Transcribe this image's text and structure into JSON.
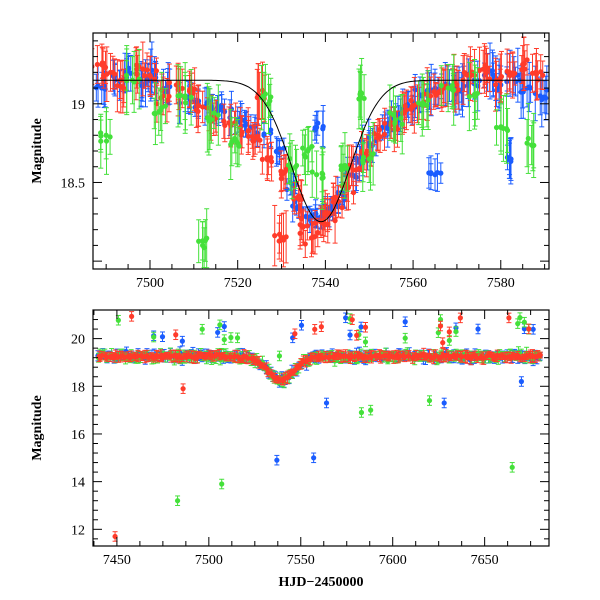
{
  "chart_data": [
    {
      "type": "scatter",
      "panel": "top",
      "xlabel": "",
      "ylabel": "Magnitude",
      "xlim": [
        7487,
        7591
      ],
      "ylim": [
        19.45,
        17.95
      ],
      "y_inverted": true,
      "x_ticks": [
        7500,
        7520,
        7540,
        7560,
        7580
      ],
      "y_ticks": [
        18.5,
        19
      ],
      "y_tick_labels": [
        "18.5",
        "19"
      ],
      "x_tick_labels": [
        "7500",
        "7520",
        "7540",
        "7560",
        "7580"
      ],
      "colors": {
        "red": "#ff3b2a",
        "green": "#44e03a",
        "blue": "#1a5cff"
      },
      "series": [
        {
          "color": "blue",
          "points": [
            [
              7489,
              19.1,
              0.1
            ],
            [
              7492,
              19.15,
              0.1
            ],
            [
              7495,
              19.2,
              0.12
            ],
            [
              7498,
              19.12,
              0.1
            ],
            [
              7501,
              19.18,
              0.12
            ],
            [
              7504,
              19.1,
              0.1
            ],
            [
              7508,
              19.05,
              0.1
            ],
            [
              7511,
              19.0,
              0.08
            ],
            [
              7514,
              18.98,
              0.08
            ],
            [
              7517,
              18.95,
              0.08
            ],
            [
              7520,
              18.9,
              0.08
            ],
            [
              7523,
              18.85,
              0.08
            ],
            [
              7526,
              18.8,
              0.08
            ],
            [
              7529,
              18.7,
              0.08
            ],
            [
              7532,
              18.5,
              0.08
            ],
            [
              7534,
              18.35,
              0.07
            ],
            [
              7536,
              18.28,
              0.06
            ],
            [
              7538,
              18.27,
              0.06
            ],
            [
              7540,
              18.3,
              0.06
            ],
            [
              7542,
              18.35,
              0.06
            ],
            [
              7544,
              18.42,
              0.07
            ],
            [
              7546,
              18.55,
              0.07
            ],
            [
              7548,
              18.65,
              0.08
            ],
            [
              7550,
              18.75,
              0.08
            ],
            [
              7553,
              18.85,
              0.08
            ],
            [
              7556,
              18.92,
              0.08
            ],
            [
              7559,
              18.98,
              0.1
            ],
            [
              7562,
              19.05,
              0.1
            ],
            [
              7565,
              19.1,
              0.12
            ],
            [
              7568,
              19.12,
              0.12
            ],
            [
              7571,
              19.08,
              0.12
            ],
            [
              7574,
              19.15,
              0.12
            ],
            [
              7577,
              19.2,
              0.12
            ],
            [
              7580,
              19.12,
              0.12
            ],
            [
              7583,
              19.18,
              0.12
            ],
            [
              7586,
              19.1,
              0.12
            ],
            [
              7589,
              19.05,
              0.12
            ],
            [
              7538,
              18.85,
              0.1
            ],
            [
              7565,
              18.55,
              0.1
            ],
            [
              7582,
              18.65,
              0.1
            ],
            [
              7500,
              19.15,
              0.1
            ]
          ]
        },
        {
          "color": "red",
          "points": [
            [
              7488,
              19.25,
              0.12
            ],
            [
              7491,
              19.2,
              0.12
            ],
            [
              7494,
              19.1,
              0.12
            ],
            [
              7497,
              19.22,
              0.12
            ],
            [
              7500,
              19.18,
              0.12
            ],
            [
              7503,
              19.05,
              0.12
            ],
            [
              7506,
              19.12,
              0.12
            ],
            [
              7509,
              19.08,
              0.1
            ],
            [
              7512,
              18.98,
              0.1
            ],
            [
              7515,
              18.92,
              0.1
            ],
            [
              7518,
              18.88,
              0.1
            ],
            [
              7521,
              18.82,
              0.1
            ],
            [
              7524,
              18.78,
              0.1
            ],
            [
              7527,
              18.65,
              0.1
            ],
            [
              7530,
              18.55,
              0.1
            ],
            [
              7533,
              18.4,
              0.1
            ],
            [
              7535,
              18.22,
              0.1
            ],
            [
              7537,
              18.15,
              0.1
            ],
            [
              7539,
              18.25,
              0.1
            ],
            [
              7541,
              18.3,
              0.1
            ],
            [
              7543,
              18.38,
              0.1
            ],
            [
              7545,
              18.48,
              0.1
            ],
            [
              7547,
              18.58,
              0.1
            ],
            [
              7549,
              18.68,
              0.1
            ],
            [
              7552,
              18.8,
              0.1
            ],
            [
              7555,
              18.88,
              0.1
            ],
            [
              7558,
              18.95,
              0.1
            ],
            [
              7561,
              19.0,
              0.12
            ],
            [
              7564,
              19.05,
              0.12
            ],
            [
              7567,
              19.1,
              0.12
            ],
            [
              7570,
              19.12,
              0.12
            ],
            [
              7573,
              19.18,
              0.12
            ],
            [
              7576,
              19.22,
              0.12
            ],
            [
              7579,
              19.15,
              0.12
            ],
            [
              7582,
              19.2,
              0.12
            ],
            [
              7585,
              19.25,
              0.12
            ],
            [
              7588,
              19.2,
              0.12
            ],
            [
              7525,
              19.05,
              0.15
            ],
            [
              7530,
              18.15,
              0.15
            ]
          ]
        },
        {
          "color": "green",
          "points": [
            [
              7490,
              18.8,
              0.15
            ],
            [
              7496,
              19.15,
              0.15
            ],
            [
              7502,
              18.95,
              0.15
            ],
            [
              7508,
              19.05,
              0.15
            ],
            [
              7514,
              18.9,
              0.15
            ],
            [
              7520,
              18.75,
              0.15
            ],
            [
              7526,
              19.05,
              0.15
            ],
            [
              7532,
              18.6,
              0.15
            ],
            [
              7538,
              18.55,
              0.15
            ],
            [
              7544,
              18.6,
              0.15
            ],
            [
              7550,
              18.65,
              0.15
            ],
            [
              7556,
              18.9,
              0.15
            ],
            [
              7562,
              19.0,
              0.15
            ],
            [
              7568,
              19.1,
              0.15
            ],
            [
              7574,
              19.05,
              0.15
            ],
            [
              7580,
              18.85,
              0.15
            ],
            [
              7586,
              18.75,
              0.15
            ],
            [
              7512,
              18.1,
              0.15
            ],
            [
              7548,
              19.05,
              0.15
            ],
            [
              7536,
              18.7,
              0.15
            ]
          ]
        }
      ]
    },
    {
      "type": "scatter",
      "panel": "bottom",
      "xlabel": "HJD−2450000",
      "ylabel": "Magnitude",
      "xlim": [
        7437,
        7685
      ],
      "ylim": [
        21.2,
        11.3
      ],
      "y_inverted": true,
      "x_ticks": [
        7450,
        7500,
        7550,
        7600,
        7650
      ],
      "y_ticks": [
        12,
        14,
        16,
        18,
        20
      ],
      "x_tick_labels": [
        "7450",
        "7500",
        "7550",
        "7600",
        "7650"
      ],
      "y_tick_labels": [
        "12",
        "14",
        "16",
        "18",
        "20"
      ],
      "colors": {
        "red": "#ff3b2a",
        "green": "#44e03a",
        "blue": "#1a5cff"
      },
      "outliers": [
        {
          "color": "red",
          "x": 7449,
          "y": 11.7
        },
        {
          "color": "green",
          "x": 7483,
          "y": 13.2
        },
        {
          "color": "green",
          "x": 7507,
          "y": 13.9
        },
        {
          "color": "blue",
          "x": 7537,
          "y": 14.9
        },
        {
          "color": "blue",
          "x": 7557,
          "y": 15.0
        },
        {
          "color": "green",
          "x": 7665,
          "y": 14.6
        },
        {
          "color": "green",
          "x": 7583,
          "y": 16.9
        },
        {
          "color": "green",
          "x": 7588,
          "y": 17.0
        },
        {
          "color": "green",
          "x": 7620,
          "y": 17.4
        },
        {
          "color": "blue",
          "x": 7628,
          "y": 17.3
        },
        {
          "color": "blue",
          "x": 7564,
          "y": 17.3
        },
        {
          "color": "red",
          "x": 7486,
          "y": 17.9
        },
        {
          "color": "blue",
          "x": 7670,
          "y": 18.2
        }
      ]
    }
  ]
}
